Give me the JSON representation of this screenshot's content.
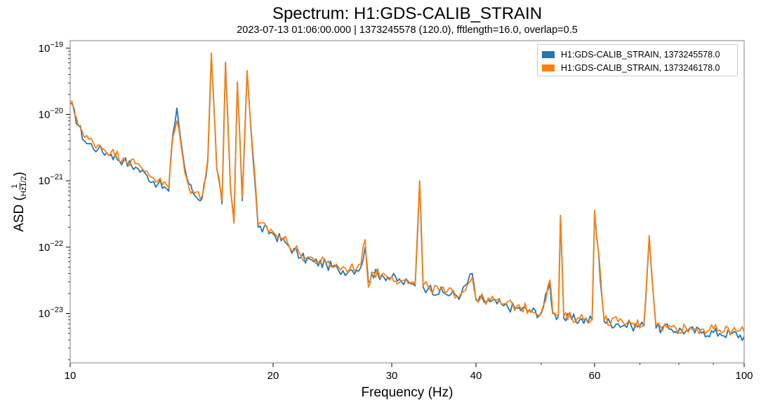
{
  "chart_data": {
    "type": "line",
    "title": "Spectrum: H1:GDS-CALIB_STRAIN",
    "subtitle": "2023-07-13 01:06:00.000 | 1373245578 (120.0), fftlength=16.0, overlap=0.5",
    "xlabel": "Frequency (Hz)",
    "ylabel_text": "ASD",
    "ylabel_fraction_numerator": "1",
    "ylabel_fraction_denominator": "Hz1/2",
    "x_scale": "log",
    "y_scale": "log",
    "xlim": [
      10,
      100
    ],
    "ylim": [
      1.8e-24,
      1.3e-19
    ],
    "x_ticks": [
      {
        "value": 10,
        "label": "10"
      },
      {
        "value": 20,
        "label": "20"
      },
      {
        "value": 30,
        "label": "30"
      },
      {
        "value": 40,
        "label": "40"
      },
      {
        "value": 60,
        "label": "60"
      },
      {
        "value": 100,
        "label": "100"
      }
    ],
    "y_ticks": [
      {
        "value": 1e-19,
        "mantissa": "10",
        "exponent": "−19"
      },
      {
        "value": 1e-20,
        "mantissa": "10",
        "exponent": "−20"
      },
      {
        "value": 1e-21,
        "mantissa": "10",
        "exponent": "−21"
      },
      {
        "value": 1e-22,
        "mantissa": "10",
        "exponent": "−22"
      },
      {
        "value": 1e-23,
        "mantissa": "10",
        "exponent": "−23"
      }
    ],
    "grid": false,
    "legend_position": "top-right",
    "series": [
      {
        "name": "H1:GDS-CALIB_STRAIN, 1373245578.0",
        "color": "#1f77b4",
        "x": [
          10,
          10.5,
          11,
          11.5,
          12,
          12.5,
          13,
          13.5,
          14,
          14.2,
          14.4,
          14.6,
          14.8,
          15,
          15.3,
          15.7,
          16,
          16.2,
          16.5,
          16.8,
          17,
          17.3,
          17.5,
          17.7,
          18,
          18.3,
          19,
          20,
          21,
          22,
          23,
          24,
          25,
          26,
          27,
          27.4,
          27.7,
          28,
          29,
          30,
          31,
          32,
          32.5,
          33,
          33.4,
          34,
          36,
          38,
          39.5,
          40,
          42,
          44,
          46,
          48,
          50,
          51.5,
          52,
          53,
          53.4,
          54,
          57,
          59.5,
          60,
          62,
          65,
          68,
          71,
          72.3,
          74,
          78,
          82,
          87,
          92,
          96,
          100
        ],
        "y": [
          1.5e-20,
          4e-21,
          3e-21,
          2.5e-21,
          2e-21,
          1.6e-21,
          1.2e-21,
          9e-22,
          7e-22,
          5e-21,
          1.25e-20,
          4e-21,
          1.5e-21,
          9e-22,
          6e-22,
          5.5e-22,
          2e-21,
          8e-20,
          1.5e-21,
          4.5e-22,
          6e-20,
          7e-22,
          2.5e-22,
          3e-20,
          5e-22,
          4.5e-20,
          2e-22,
          1.6e-22,
          1.1e-22,
          7e-23,
          6e-23,
          5.5e-23,
          4.5e-23,
          4.5e-23,
          5e-23,
          1e-22,
          3e-23,
          4e-23,
          3.8e-23,
          3.5e-23,
          3e-23,
          2.8e-23,
          2.6e-23,
          1e-21,
          2.5e-23,
          2.4e-23,
          2e-23,
          1.9e-23,
          4e-23,
          1.6e-23,
          1.5e-23,
          1.3e-23,
          1.2e-23,
          1.1e-23,
          1e-23,
          2.8e-23,
          1e-23,
          9e-24,
          3e-22,
          8.5e-24,
          8e-24,
          8e-24,
          3.5e-22,
          7.5e-24,
          7e-24,
          6.5e-24,
          6.5e-24,
          1.4e-22,
          6e-24,
          5.8e-24,
          5.5e-24,
          5.3e-24,
          5e-24,
          5e-24,
          4.5e-24
        ]
      },
      {
        "name": "H1:GDS-CALIB_STRAIN, 1373246178.0",
        "color": "#ff7f0e",
        "x": [
          10,
          10.5,
          11,
          11.5,
          12,
          12.5,
          13,
          13.5,
          14,
          14.2,
          14.4,
          14.6,
          14.8,
          15,
          15.3,
          15.7,
          16,
          16.2,
          16.5,
          16.8,
          17,
          17.3,
          17.5,
          17.7,
          18,
          18.3,
          19,
          20,
          21,
          22,
          23,
          24,
          25,
          26,
          27,
          27.4,
          27.7,
          28,
          29,
          30,
          31,
          32,
          32.5,
          33,
          33.4,
          34,
          36,
          38,
          39.5,
          40,
          42,
          44,
          46,
          48,
          50,
          51.5,
          52,
          53,
          53.4,
          54,
          57,
          59.5,
          60,
          62,
          65,
          68,
          71,
          72.3,
          74,
          78,
          82,
          87,
          92,
          96,
          100
        ],
        "y": [
          1.6e-20,
          4.5e-21,
          3.5e-21,
          2.7e-21,
          2.2e-21,
          1.8e-21,
          1.4e-21,
          1e-21,
          8e-22,
          4.5e-21,
          8e-21,
          3.5e-21,
          1.3e-21,
          8e-22,
          6.5e-22,
          6e-22,
          2.2e-21,
          8.5e-20,
          1.6e-21,
          5e-22,
          6.2e-20,
          7.5e-22,
          2.3e-22,
          3.1e-20,
          5.5e-22,
          4.6e-20,
          2.2e-22,
          1.7e-22,
          1.2e-22,
          7.5e-23,
          6.5e-23,
          5.8e-23,
          5e-23,
          4.8e-23,
          5.5e-23,
          1.3e-22,
          2.5e-23,
          4.2e-23,
          3.9e-23,
          3.6e-23,
          3.1e-23,
          2.9e-23,
          2.7e-23,
          1e-21,
          2.6e-23,
          2.5e-23,
          2.1e-23,
          2e-23,
          3.5e-23,
          1.7e-23,
          1.6e-23,
          1.4e-23,
          1.3e-23,
          1.15e-23,
          1.05e-23,
          3.2e-23,
          1.05e-23,
          9.5e-24,
          2.9e-22,
          9e-24,
          8.5e-24,
          8.5e-24,
          3.6e-22,
          8e-24,
          7.5e-24,
          7e-24,
          7e-24,
          1.5e-22,
          6.5e-24,
          6.2e-24,
          6e-24,
          5.8e-24,
          5.6e-24,
          5.5e-24,
          5.3e-24
        ]
      }
    ]
  }
}
